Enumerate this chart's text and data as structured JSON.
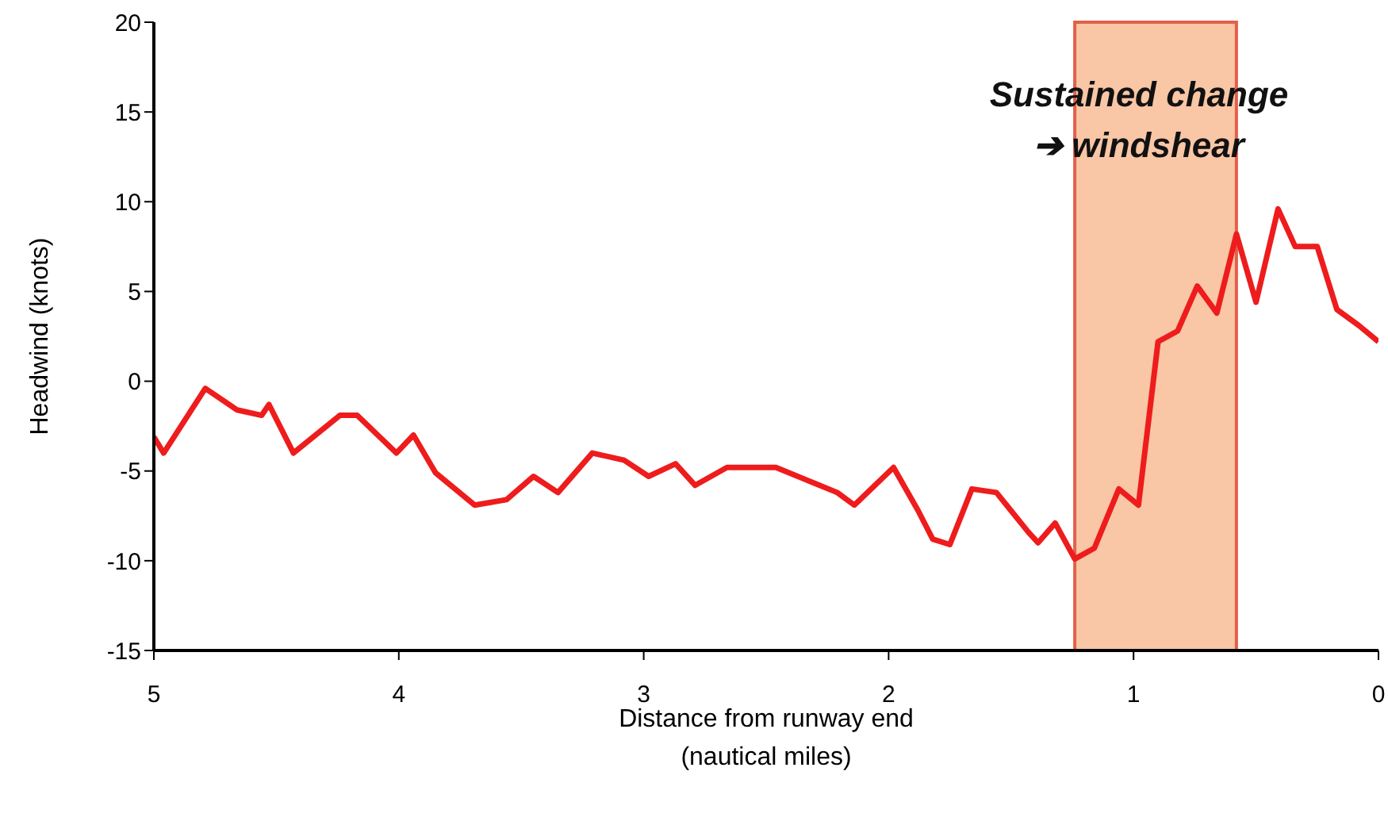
{
  "chart_data": {
    "type": "line",
    "xlabel": "Distance from runway end\n(nautical miles)",
    "ylabel": "Headwind (knots)",
    "annotations": [
      "Sustained change\n➔ windshear"
    ],
    "x": [
      5,
      4.96,
      4.79,
      4.66,
      4.56,
      4.53,
      4.43,
      4.24,
      4.17,
      4.01,
      3.94,
      3.85,
      3.69,
      3.56,
      3.45,
      3.35,
      3.21,
      3.08,
      2.98,
      2.87,
      2.79,
      2.66,
      2.46,
      2.3,
      2.21,
      2.14,
      1.98,
      1.88,
      1.82,
      1.75,
      1.66,
      1.56,
      1.43,
      1.39,
      1.32,
      1.24,
      1.16,
      1.06,
      0.98,
      0.9,
      0.82,
      0.74,
      0.66,
      0.58,
      0.5,
      0.41,
      0.34,
      0.25,
      0.17,
      0.08,
      0
    ],
    "series": [
      {
        "color": "#ee1c1c",
        "values": [
          -3.1,
          -4,
          -0.4,
          -1.6,
          -1.9,
          -1.3,
          -4,
          -1.9,
          -1.9,
          -4,
          -3,
          -5.1,
          -6.9,
          -6.6,
          -5.3,
          -6.2,
          -4,
          -4.4,
          -5.3,
          -4.6,
          -5.8,
          -4.8,
          -4.8,
          -5.7,
          -6.2,
          -6.9,
          -4.8,
          -7.2,
          -8.8,
          -9.1,
          -6,
          -6.2,
          -8.4,
          -9,
          -7.9,
          -9.9,
          -9.3,
          -6,
          -6.9,
          2.2,
          2.8,
          5.3,
          3.8,
          8.2,
          4.4,
          9.6,
          7.5,
          7.5,
          4,
          3.1,
          2.2
        ]
      }
    ],
    "xlim": [
      5,
      0
    ],
    "xticks": [
      5,
      4,
      3,
      2,
      1,
      0
    ],
    "ylim": [
      -15,
      20
    ],
    "yticks": [
      -15,
      -10,
      -5,
      0,
      5,
      10,
      15,
      20
    ],
    "bands": [
      {
        "axis": "x",
        "from": 1.24,
        "to": 0.58,
        "color": "#f9c6a6"
      }
    ],
    "grid": false,
    "legend": false,
    "marker": "none",
    "line_style": "solid"
  }
}
